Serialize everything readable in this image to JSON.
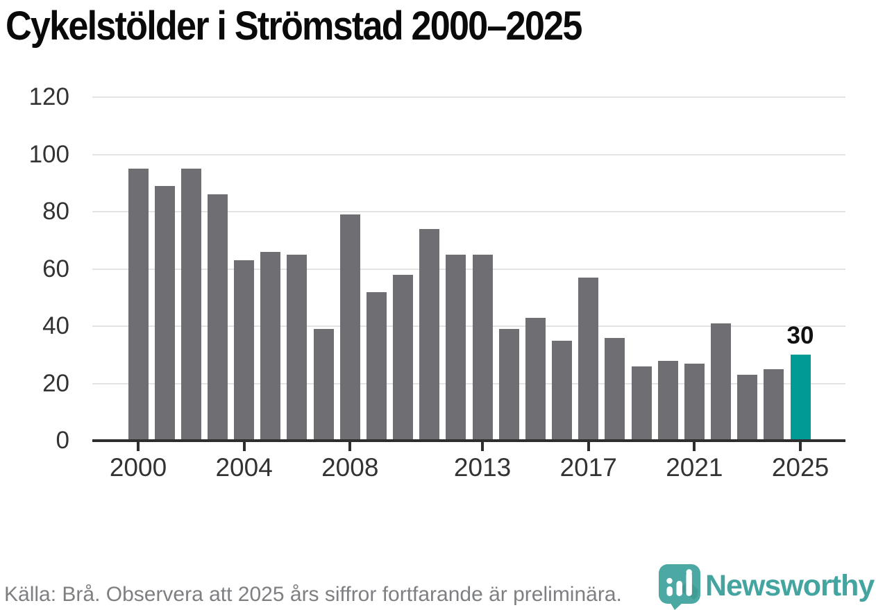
{
  "title": "Cykelstölder i Strömstad 2000–2025",
  "footer": {
    "source_note": "Källa: Brå. Observera att 2025 års siffror fortfarande är preliminära."
  },
  "branding": {
    "name": "Newsworthy",
    "logo_color": "#4ba8a3",
    "logo_shade_color": "#3a928d",
    "wordmark_color": "#44a5a0"
  },
  "chart_data": {
    "type": "bar",
    "title": "Cykelstölder i Strömstad 2000–2025",
    "x": [
      2000,
      2001,
      2002,
      2003,
      2004,
      2005,
      2006,
      2007,
      2008,
      2009,
      2010,
      2011,
      2012,
      2013,
      2014,
      2015,
      2016,
      2017,
      2018,
      2019,
      2020,
      2021,
      2022,
      2023,
      2024,
      2025
    ],
    "values": [
      95,
      89,
      95,
      86,
      63,
      66,
      65,
      39,
      79,
      52,
      58,
      74,
      65,
      65,
      39,
      43,
      35,
      57,
      36,
      26,
      28,
      27,
      41,
      23,
      25,
      30
    ],
    "xlabel": "",
    "ylabel": "",
    "ylim": [
      0,
      120
    ],
    "yticks": [
      0,
      20,
      40,
      60,
      80,
      100,
      120
    ],
    "xticks": [
      2000,
      2004,
      2008,
      2013,
      2017,
      2021,
      2025
    ],
    "grid": true,
    "legend": "none",
    "bar_color": "#6f6e72",
    "highlight_year": 2025,
    "highlight_color": "#009b94",
    "highlight_value_label": "30",
    "axis_color": "#2e2e2e",
    "grid_color": "#e3e3e3",
    "tick_label_color": "#333333"
  }
}
